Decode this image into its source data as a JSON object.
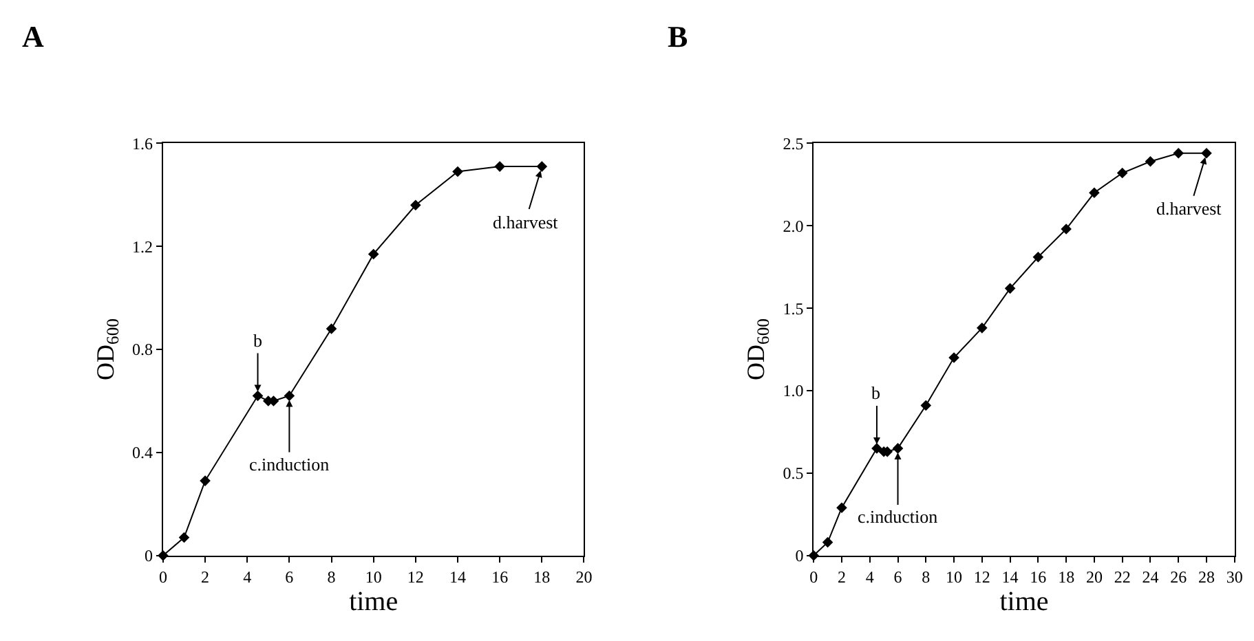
{
  "chart_data": [
    {
      "type": "line",
      "title": "A",
      "xlabel": "time",
      "ylabel": "OD$_{600}$",
      "marker": "diamond",
      "line_style": "solid",
      "x": [
        0,
        1,
        2,
        4.5,
        5,
        5.25,
        6,
        8,
        10,
        12,
        14,
        16,
        18
      ],
      "series": [
        {
          "color": "#000000",
          "values": [
            0,
            0.07,
            0.29,
            0.62,
            0.6,
            0.6,
            0.62,
            0.88,
            1.17,
            1.36,
            1.49,
            1.51,
            1.51
          ]
        }
      ],
      "xlim": [
        0,
        20
      ],
      "xticks": [
        0,
        2,
        4,
        6,
        8,
        10,
        12,
        14,
        16,
        18,
        20
      ],
      "ylim": [
        0,
        1.6
      ],
      "yticks": [
        0,
        0.4,
        0.8,
        1.2,
        1.6
      ],
      "annotations": [
        {
          "text": "b",
          "x": 4.5,
          "y": 0.62
        },
        {
          "text": "c.induction",
          "x": 6,
          "y": 0.62
        },
        {
          "text": "d.harvest",
          "x": 18,
          "y": 1.51
        }
      ]
    },
    {
      "type": "line",
      "title": "B",
      "xlabel": "time",
      "ylabel": "OD$_{600}$",
      "marker": "diamond",
      "line_style": "solid",
      "x": [
        0,
        1,
        2,
        4.5,
        5,
        5.25,
        6,
        8,
        10,
        12,
        14,
        16,
        18,
        20,
        22,
        24,
        26,
        28
      ],
      "series": [
        {
          "color": "#000000",
          "values": [
            0,
            0.08,
            0.29,
            0.65,
            0.63,
            0.63,
            0.65,
            0.91,
            1.2,
            1.38,
            1.62,
            1.81,
            1.98,
            2.2,
            2.32,
            2.39,
            2.44,
            2.44
          ]
        }
      ],
      "xlim": [
        0,
        30
      ],
      "xticks": [
        0,
        2,
        4,
        6,
        8,
        10,
        12,
        14,
        16,
        18,
        20,
        22,
        24,
        26,
        28,
        30
      ],
      "ylim": [
        0,
        2.5
      ],
      "yticks": [
        0,
        {
          "value": 0.5,
          "label": "0.5"
        },
        {
          "value": 1,
          "label": "1.0"
        },
        {
          "value": 1.5,
          "label": "1.5"
        },
        {
          "value": 2,
          "label": "2.0"
        },
        {
          "value": 2.5,
          "label": "2.5"
        }
      ],
      "annotations": [
        {
          "text": "b",
          "x": 4.5,
          "y": 0.65
        },
        {
          "text": "c.induction",
          "x": 6,
          "y": 0.65
        },
        {
          "text": "d.harvest",
          "x": 28,
          "y": 2.44
        }
      ]
    }
  ]
}
